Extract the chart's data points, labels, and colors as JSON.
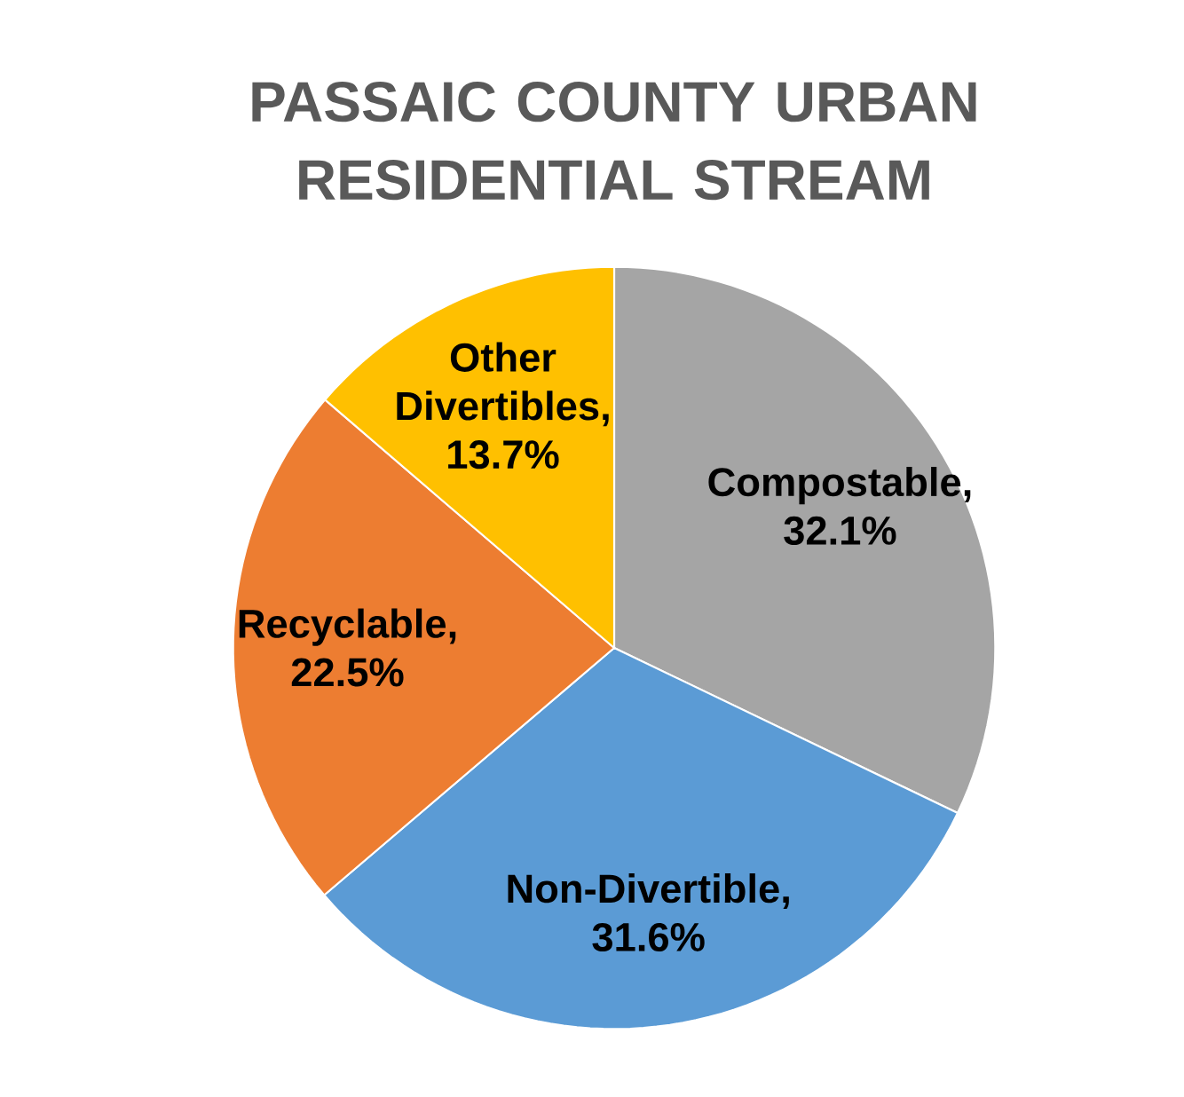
{
  "chart_data": {
    "type": "pie",
    "title": "PASSAIC COUNTY URBAN RESIDENTIAL STREAM",
    "categories": [
      "Compostable",
      "Non-Divertible",
      "Recyclable",
      "Other Divertibles"
    ],
    "values": [
      32.1,
      31.6,
      22.5,
      13.7
    ],
    "value_labels": [
      ", 32.1%",
      ", 31.6%",
      ", 22.5%",
      ", 13.7%"
    ],
    "colors": [
      "#a5a5a5",
      "#5b9bd5",
      "#ed7d31",
      "#ffc000"
    ],
    "legend": false
  }
}
